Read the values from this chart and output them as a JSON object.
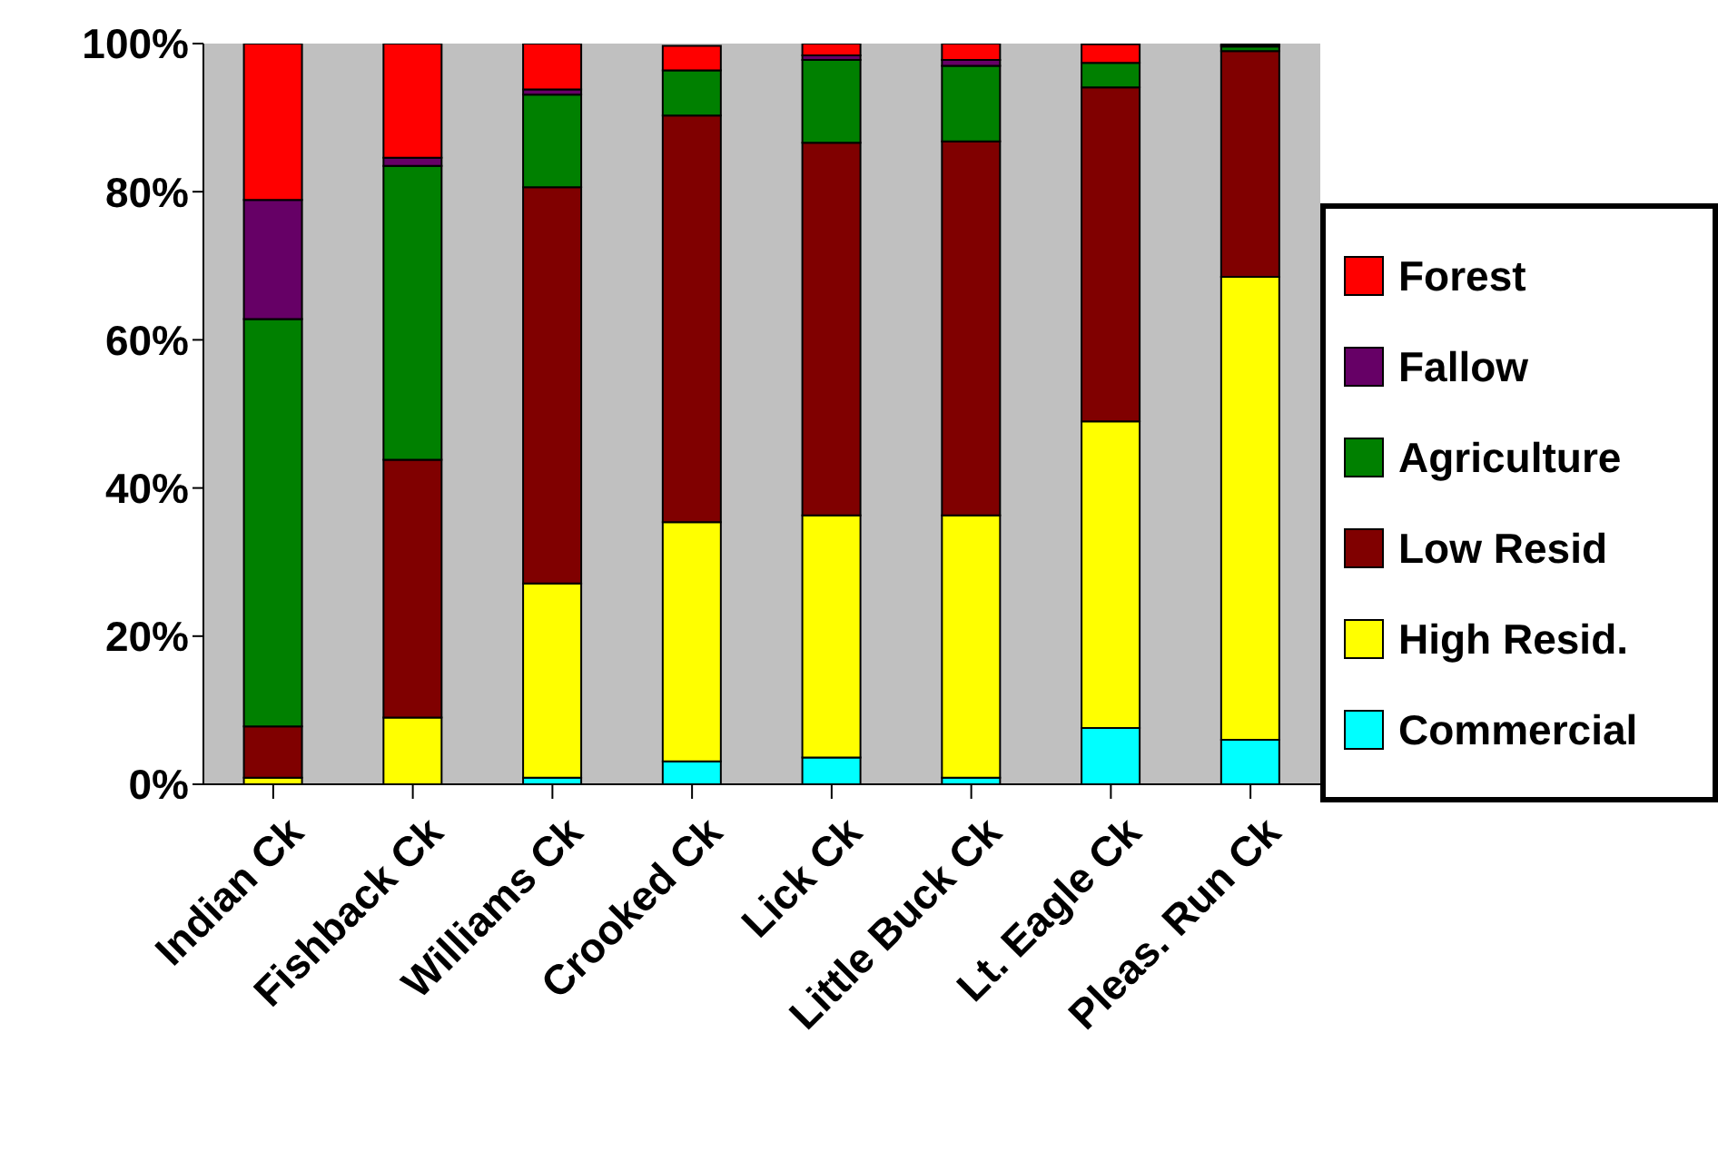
{
  "chart_data": {
    "type": "bar",
    "stacked": true,
    "categories": [
      "Indian Ck",
      "Fishback Ck",
      "Williams Ck",
      "Crooked Ck",
      "Lick Ck",
      "Little Buck Ck",
      "Lt. Eagle Ck",
      "Pleas. Run Ck"
    ],
    "series": [
      {
        "name": "Commercial",
        "color": "#00ffff",
        "values": [
          0,
          0,
          0.9,
          3.1,
          3.6,
          0.9,
          7.6,
          6.0
        ]
      },
      {
        "name": "High Resid.",
        "color": "#ffff00",
        "values": [
          0.9,
          9.0,
          26.2,
          32.3,
          32.7,
          35.4,
          41.4,
          62.5
        ]
      },
      {
        "name": "Low Resid",
        "color": "#800000",
        "values": [
          6.9,
          34.8,
          53.5,
          54.9,
          50.3,
          50.5,
          45.1,
          30.5
        ]
      },
      {
        "name": "Agriculture",
        "color": "#008000",
        "values": [
          55.0,
          39.7,
          12.5,
          6.1,
          11.2,
          10.2,
          3.3,
          0.6
        ]
      },
      {
        "name": "Fallow",
        "color": "#660066",
        "values": [
          16.1,
          1.1,
          0.7,
          null,
          0.6,
          0.8,
          0,
          0.2
        ]
      },
      {
        "name": "Forest",
        "color": "#ff0000",
        "values": [
          21.1,
          15.4,
          6.2,
          3.3,
          1.6,
          2.2,
          2.5,
          0.2
        ]
      }
    ],
    "ylim": [
      0,
      100
    ],
    "yticks": [
      {
        "value": 0,
        "label": "0%"
      },
      {
        "value": 20,
        "label": "20%"
      },
      {
        "value": 40,
        "label": "40%"
      },
      {
        "value": 60,
        "label": "60%"
      },
      {
        "value": 80,
        "label": "80%"
      },
      {
        "value": 100,
        "label": "100%"
      }
    ],
    "grid": false,
    "legend": "right"
  }
}
